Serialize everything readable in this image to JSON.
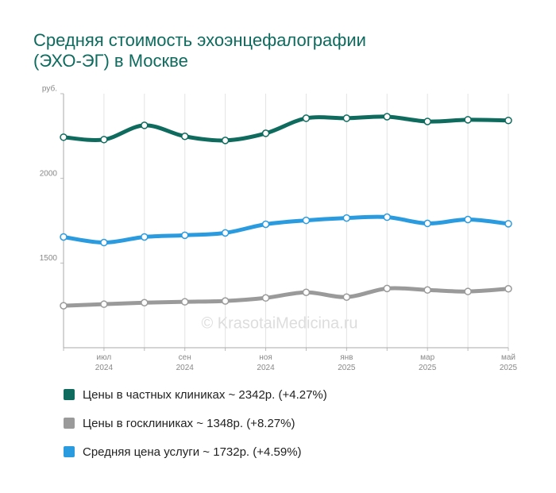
{
  "chart_data": {
    "type": "line",
    "title": [
      "Средняя стоимость эхоэнцефалографии",
      "(ЭХО-ЭГ) в Москве"
    ],
    "watermark": "© KrasotaiMedicina.ru",
    "categories": [
      null,
      "июл 2024",
      null,
      "сен 2024",
      null,
      "ноя 2024",
      null,
      "янв 2025",
      null,
      "мар 2025",
      null,
      "май 2025"
    ],
    "ylim": [
      1000,
      2500
    ],
    "yticks": [
      1500,
      2000,
      {
        "value": 2500,
        "label": "руб."
      }
    ],
    "grid": true,
    "series": [
      {
        "name": "Цены в частных клиниках ~ 2342р. (+4.27%)",
        "color": "#0e6b5e",
        "values": [
          2243,
          2229,
          2313,
          2248,
          2224,
          2266,
          2355,
          2355,
          2364,
          2336,
          2346,
          2342
        ]
      },
      {
        "name": "Цены в госклиниках ~ 1348р. (+8.27%)",
        "color": "#9a9a9a",
        "values": [
          1248,
          1257,
          1266,
          1271,
          1276,
          1294,
          1327,
          1299,
          1350,
          1341,
          1332,
          1348
        ]
      },
      {
        "name": "Средняя цена услуги ~ 1732р. (+4.59%)",
        "color": "#2b9be0",
        "values": [
          1654,
          1621,
          1654,
          1664,
          1678,
          1729,
          1752,
          1766,
          1771,
          1734,
          1757,
          1732
        ]
      }
    ]
  }
}
